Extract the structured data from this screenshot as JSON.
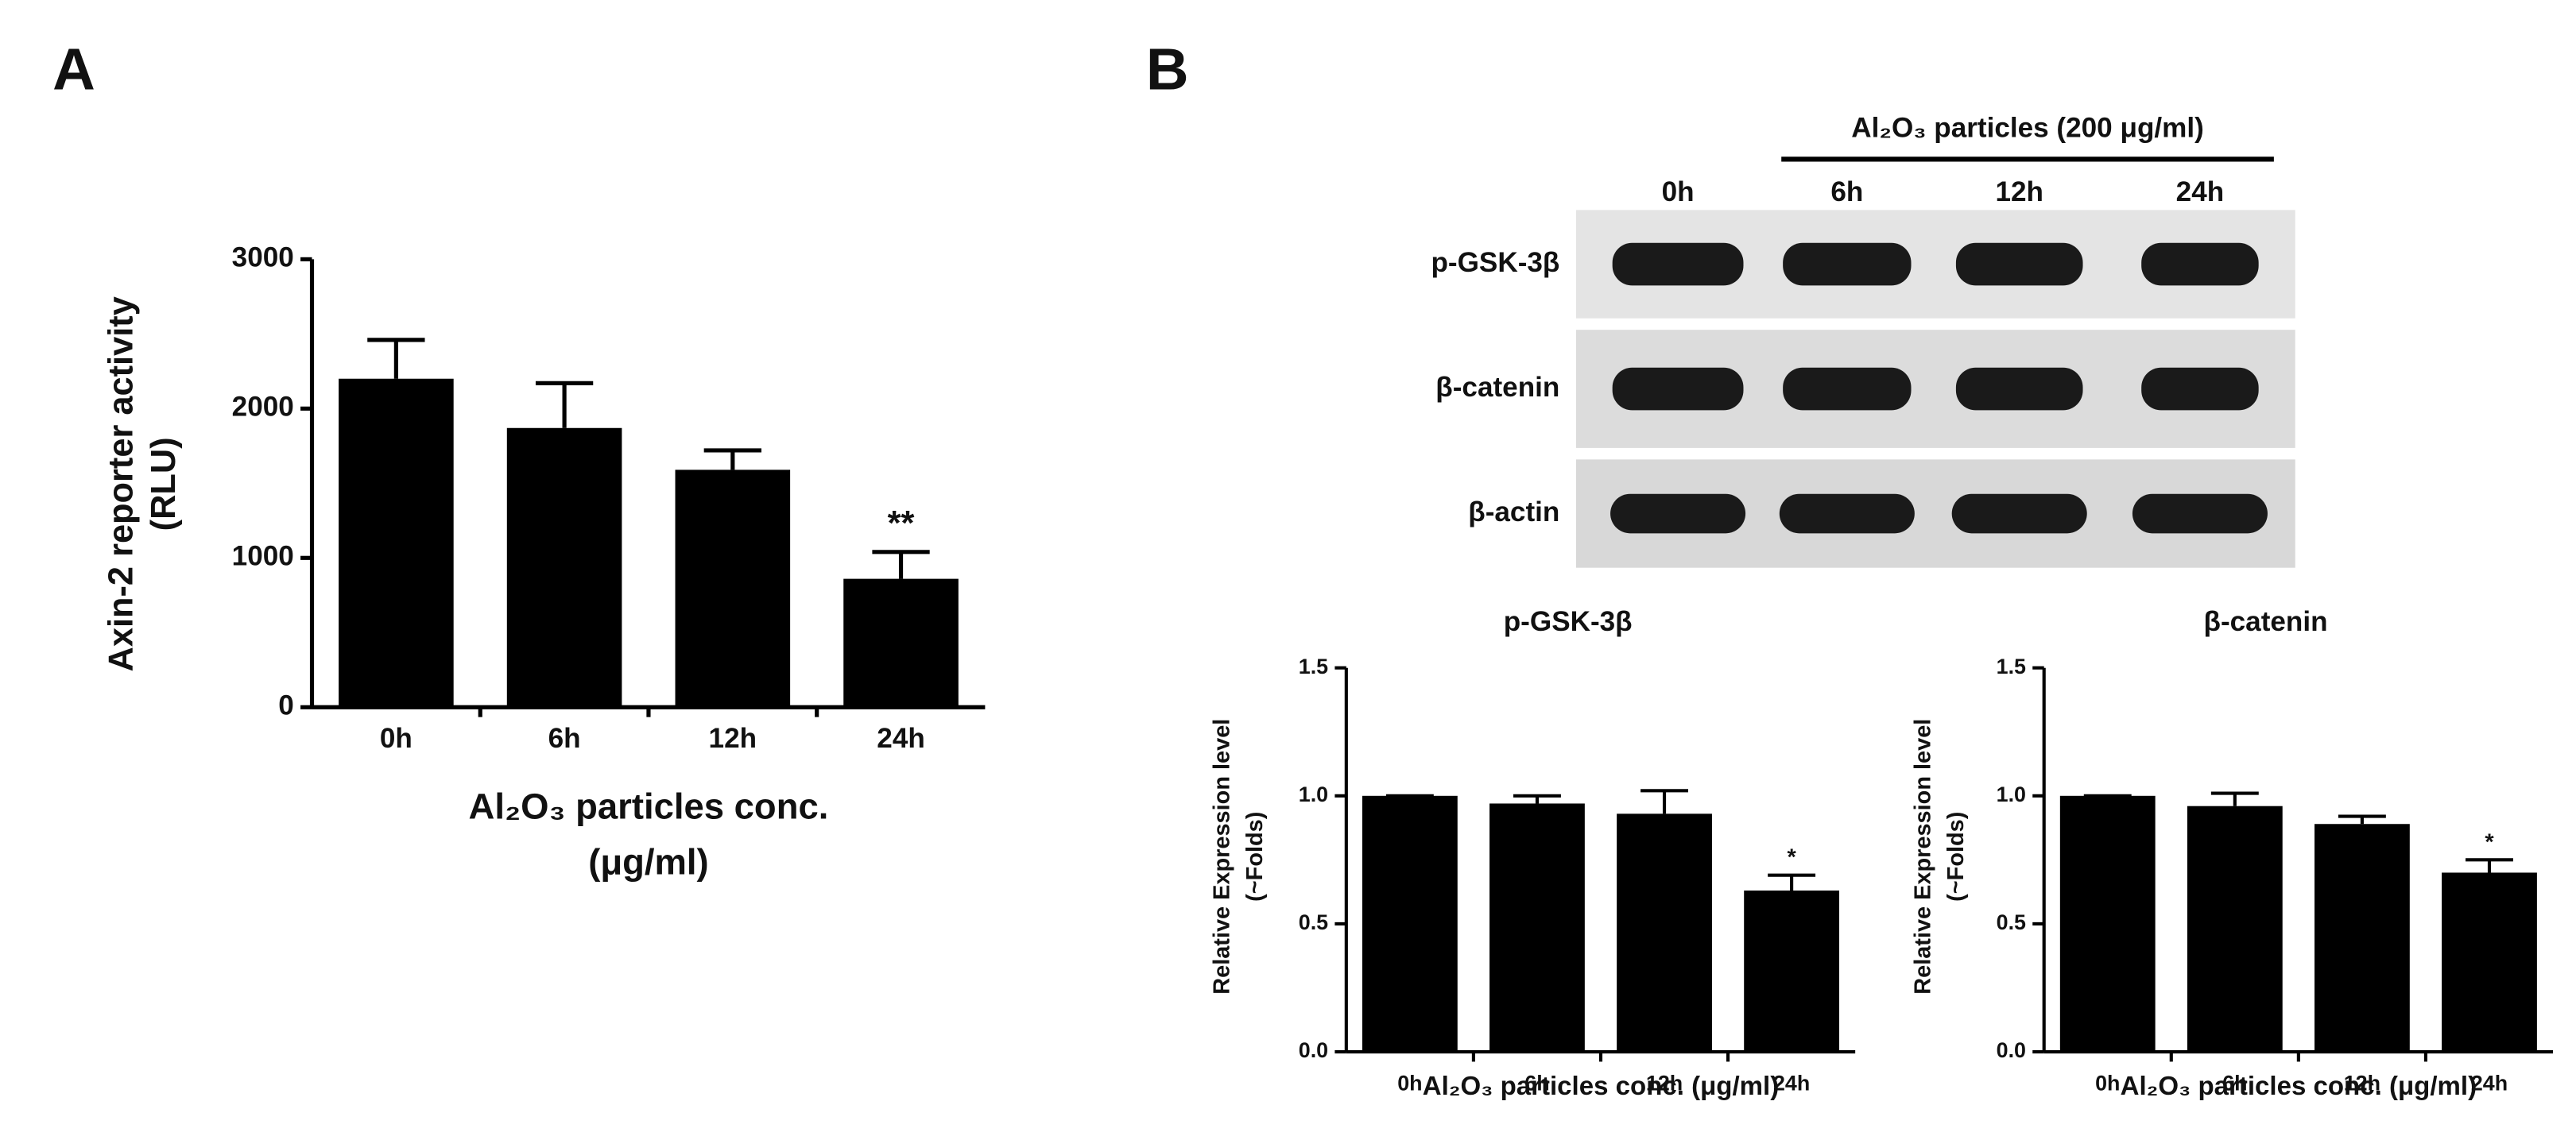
{
  "panel_labels": [
    "A",
    "B"
  ],
  "blot": {
    "header": "Al₂O₃ particles (200 μg/ml)",
    "lanes": [
      "0h",
      "6h",
      "12h",
      "24h"
    ],
    "rows": [
      "p-GSK-3β",
      "β-catenin",
      "β-actin"
    ]
  },
  "chart_data": [
    {
      "type": "bar",
      "categories": [
        "0h",
        "6h",
        "12h",
        "24h"
      ],
      "values": [
        2200,
        1870,
        1590,
        860
      ],
      "errors": [
        260,
        300,
        130,
        180
      ],
      "color": "#000000",
      "ylim": [
        0,
        3000
      ],
      "yticks": [
        0,
        1000,
        2000,
        3000
      ],
      "ylabel": [
        "Axin-2 reporter activity",
        "(RLU)"
      ],
      "xlabel": [
        "Al₂O₃ particles conc.",
        "(μg/ml)"
      ],
      "annotation": "**"
    },
    {
      "type": "bar",
      "title": "p-GSK-3β",
      "categories": [
        "0h",
        "6h",
        "12h",
        "24h"
      ],
      "values": [
        1.0,
        0.97,
        0.93,
        0.63
      ],
      "errors": [
        0,
        0.03,
        0.09,
        0.06
      ],
      "color": "#000000",
      "ylim": [
        0,
        1.5
      ],
      "yticks": [
        {
          "value": 0,
          "label": "0.0"
        },
        0.5,
        {
          "value": 1,
          "label": "1.0"
        },
        1.5
      ],
      "ylabel": [
        "Relative Expression level",
        "(~Folds)"
      ],
      "xlabel": [
        "Al₂O₃ particles conc. (μg/ml)"
      ],
      "annotation": "*"
    },
    {
      "type": "bar",
      "title": "β-catenin",
      "categories": [
        "0h",
        "6h",
        "12h",
        "24h"
      ],
      "values": [
        1.0,
        0.96,
        0.89,
        0.7
      ],
      "errors": [
        0,
        0.05,
        0.03,
        0.05
      ],
      "color": "#000000",
      "ylim": [
        0,
        1.5
      ],
      "yticks": [
        {
          "value": 0,
          "label": "0.0"
        },
        0.5,
        {
          "value": 1,
          "label": "1.0"
        },
        1.5
      ],
      "ylabel": [
        "Relative Expression level",
        "(~Folds)"
      ],
      "xlabel": [
        "Al₂O₃ particles conc. (μg/ml)"
      ],
      "annotation": "*"
    }
  ]
}
